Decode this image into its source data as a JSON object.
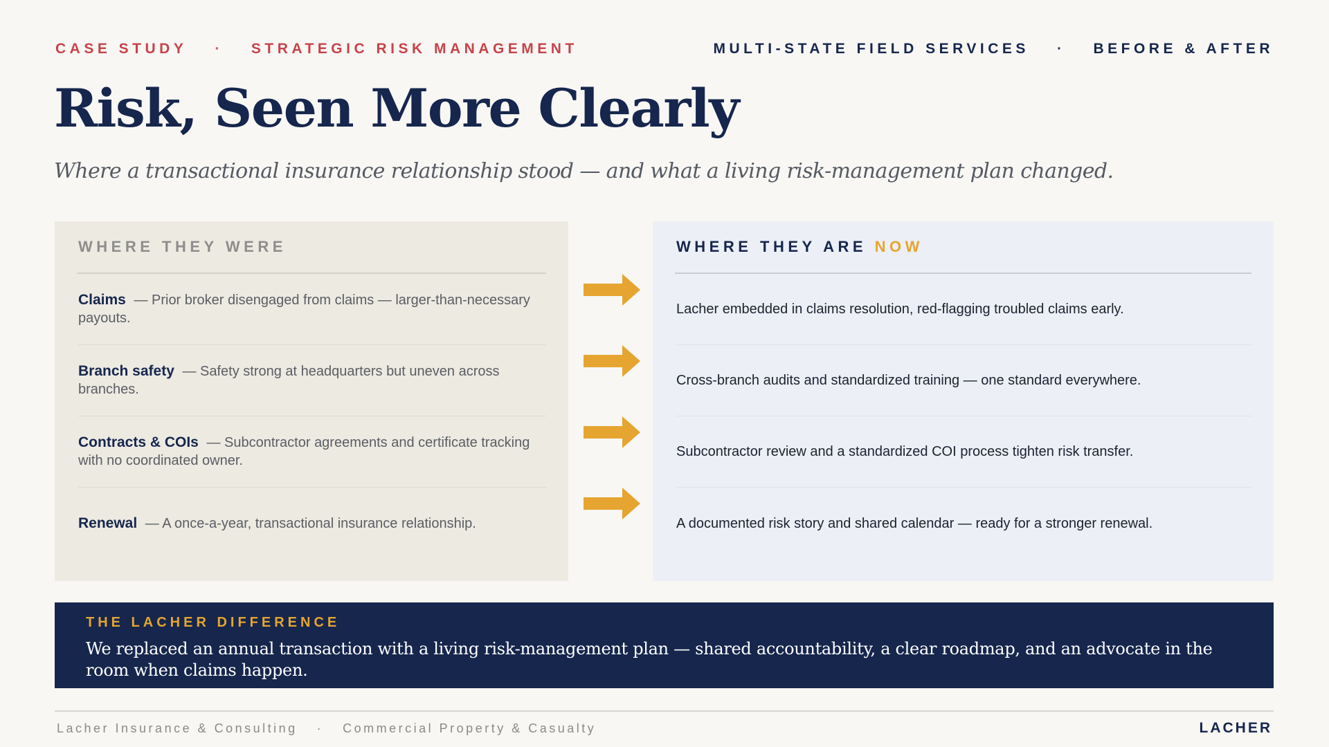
{
  "header": {
    "left_1": "CASE STUDY",
    "left_sep": "·",
    "left_2": "STRATEGIC RISK MANAGEMENT",
    "right_1": "MULTI-STATE FIELD SERVICES",
    "right_sep": "·",
    "right_2": "BEFORE & AFTER"
  },
  "title": "Risk, Seen More Clearly",
  "subtitle": "Where a transactional insurance relationship stood — and what a living risk-management plan changed.",
  "before": {
    "heading": "WHERE THEY WERE",
    "items": [
      {
        "label": "Claims",
        "text": "— Prior broker disengaged from claims — larger-than-necessary payouts."
      },
      {
        "label": "Branch safety",
        "text": "— Safety strong at headquarters but uneven across branches."
      },
      {
        "label": "Contracts & COIs",
        "text": "— Subcontractor agreements and certificate tracking with no coordinated owner."
      },
      {
        "label": "Renewal",
        "text": "— A once-a-year, transactional insurance relationship."
      }
    ]
  },
  "after": {
    "heading": "WHERE THEY ARE",
    "heading_accent": "NOW",
    "items": [
      {
        "text": "Lacher embedded in claims resolution, red-flagging troubled claims early."
      },
      {
        "text": "Cross-branch audits and standardized training — one standard everywhere."
      },
      {
        "text": "Subcontractor review and a standardized COI process tighten risk transfer."
      },
      {
        "text": "A documented risk story and shared calendar — ready for a stronger renewal."
      }
    ]
  },
  "banner": {
    "heading": "THE LACHER DIFFERENCE",
    "body": "We replaced an annual transaction with a living risk-management plan — shared accountability, a clear roadmap, and an advocate in the room when claims happen."
  },
  "footer": {
    "company": "Lacher Insurance & Consulting",
    "sep": "·",
    "line": "Commercial Property & Casualty",
    "brand": "LACHER"
  },
  "colors": {
    "navy": "#16264d",
    "red": "#c8434a",
    "gold": "#e5a530",
    "before_bg": "#edeae2",
    "after_bg": "#eceff6"
  },
  "icons": [
    "right-arrow-icon"
  ]
}
